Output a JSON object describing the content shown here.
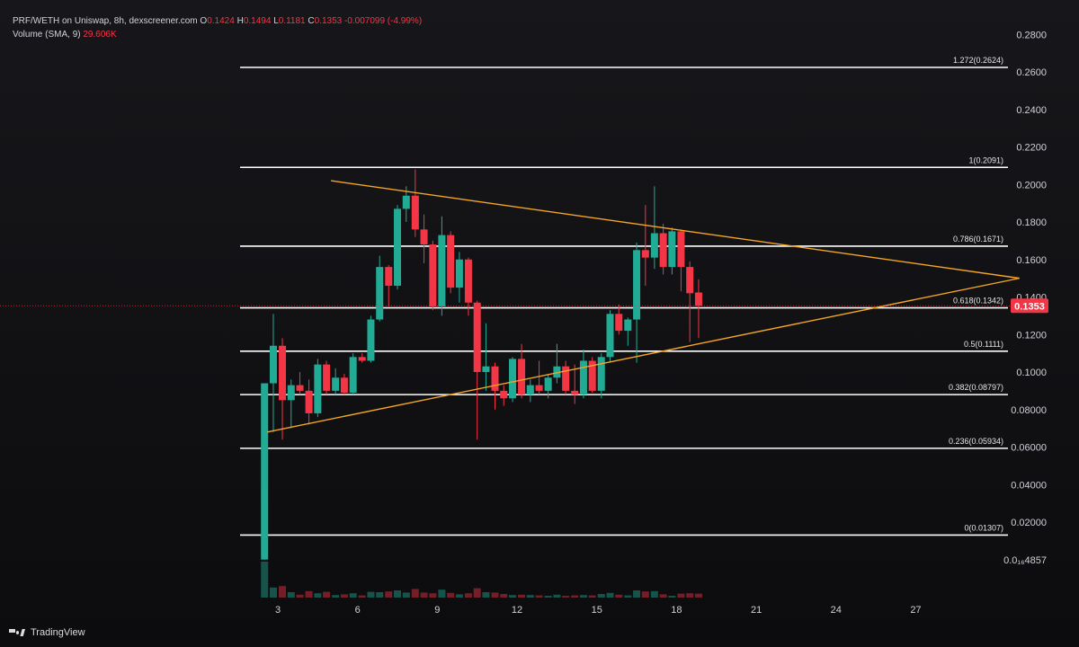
{
  "chart_data": {
    "type": "candlestick",
    "title": "PRF/WETH on Uniswap, 8h, dexscreener.com",
    "ohlc_legend": {
      "O_label": "O",
      "O": "0.1424",
      "H_label": "H",
      "H": "0.1494",
      "L_label": "L",
      "L": "0.1181",
      "C_label": "C",
      "C": "0.1353",
      "change": "-0.007099 (-4.99%)"
    },
    "volume_legend": {
      "label": "Volume (SMA, 9)",
      "value": "29.606K"
    },
    "y_axis": {
      "ylim": [
        0.0,
        0.29
      ],
      "ticks": [
        0.28,
        0.26,
        0.24,
        0.22,
        0.2,
        0.18,
        0.16,
        0.14,
        0.12,
        0.1
      ],
      "ticks_small": [
        0.08,
        0.06,
        0.04,
        0.02
      ],
      "tick_labels": [
        "0.2800",
        "0.2600",
        "0.2400",
        "0.2200",
        "0.2000",
        "0.1800",
        "0.1600",
        "0.1400",
        "0.1200",
        "0.1000"
      ],
      "tick_labels_small": [
        "0.08000",
        "0.06000",
        "0.04000",
        "0.02000"
      ],
      "bottom_label": "0.0₁₆4857"
    },
    "x_axis": {
      "tick_days": [
        3,
        6,
        9,
        12,
        15,
        18,
        21,
        24,
        27
      ],
      "tick_labels": [
        "3",
        "6",
        "9",
        "12",
        "15",
        "18",
        "21",
        "24",
        "27"
      ]
    },
    "last_price": {
      "value": 0.1353,
      "label": "0.1353"
    },
    "fib_levels": [
      {
        "ratio": 1.272,
        "price": 0.2624,
        "label": "1.272(0.2624)"
      },
      {
        "ratio": 1,
        "price": 0.2091,
        "label": "1(0.2091)"
      },
      {
        "ratio": 0.786,
        "price": 0.1671,
        "label": "0.786(0.1671)"
      },
      {
        "ratio": 0.618,
        "price": 0.1342,
        "label": "0.618(0.1342)"
      },
      {
        "ratio": 0.5,
        "price": 0.1111,
        "label": "0.5(0.1111)"
      },
      {
        "ratio": 0.382,
        "price": 0.08797,
        "label": "0.382(0.08797)"
      },
      {
        "ratio": 0.236,
        "price": 0.05934,
        "label": "0.236(0.05934)"
      },
      {
        "ratio": 0,
        "price": 0.01307,
        "label": "0(0.01307)"
      }
    ],
    "trendlines": [
      {
        "name": "upper",
        "from": {
          "day": 5.0,
          "price": 0.202
        },
        "to": {
          "day": 30.9,
          "price": 0.15
        }
      },
      {
        "name": "lower",
        "from": {
          "day": 2.6,
          "price": 0.068
        },
        "to": {
          "day": 30.9,
          "price": 0.15
        }
      }
    ],
    "candles": [
      {
        "day": 2.5,
        "o": 0.0,
        "h": 0.094,
        "l": 0.0,
        "c": 0.094,
        "v": 1.0
      },
      {
        "day": 2.83,
        "o": 0.094,
        "h": 0.131,
        "l": 0.068,
        "c": 0.114,
        "v": 0.28
      },
      {
        "day": 3.17,
        "o": 0.114,
        "h": 0.118,
        "l": 0.064,
        "c": 0.085,
        "v": 0.32
      },
      {
        "day": 3.5,
        "o": 0.085,
        "h": 0.096,
        "l": 0.07,
        "c": 0.093,
        "v": 0.15
      },
      {
        "day": 3.83,
        "o": 0.093,
        "h": 0.1,
        "l": 0.088,
        "c": 0.09,
        "v": 0.08
      },
      {
        "day": 4.17,
        "o": 0.09,
        "h": 0.096,
        "l": 0.072,
        "c": 0.078,
        "v": 0.18
      },
      {
        "day": 4.5,
        "o": 0.078,
        "h": 0.107,
        "l": 0.076,
        "c": 0.104,
        "v": 0.12
      },
      {
        "day": 4.83,
        "o": 0.104,
        "h": 0.106,
        "l": 0.088,
        "c": 0.09,
        "v": 0.16
      },
      {
        "day": 5.17,
        "o": 0.09,
        "h": 0.102,
        "l": 0.088,
        "c": 0.097,
        "v": 0.07
      },
      {
        "day": 5.5,
        "o": 0.097,
        "h": 0.099,
        "l": 0.088,
        "c": 0.089,
        "v": 0.09
      },
      {
        "day": 5.83,
        "o": 0.089,
        "h": 0.11,
        "l": 0.088,
        "c": 0.108,
        "v": 0.12
      },
      {
        "day": 6.17,
        "o": 0.108,
        "h": 0.11,
        "l": 0.105,
        "c": 0.106,
        "v": 0.06
      },
      {
        "day": 6.5,
        "o": 0.106,
        "h": 0.13,
        "l": 0.105,
        "c": 0.128,
        "v": 0.16
      },
      {
        "day": 6.83,
        "o": 0.128,
        "h": 0.162,
        "l": 0.127,
        "c": 0.156,
        "v": 0.15
      },
      {
        "day": 7.17,
        "o": 0.156,
        "h": 0.157,
        "l": 0.135,
        "c": 0.146,
        "v": 0.17
      },
      {
        "day": 7.5,
        "o": 0.146,
        "h": 0.189,
        "l": 0.144,
        "c": 0.187,
        "v": 0.2
      },
      {
        "day": 7.83,
        "o": 0.187,
        "h": 0.199,
        "l": 0.18,
        "c": 0.194,
        "v": 0.14
      },
      {
        "day": 8.17,
        "o": 0.194,
        "h": 0.208,
        "l": 0.172,
        "c": 0.176,
        "v": 0.24
      },
      {
        "day": 8.5,
        "o": 0.176,
        "h": 0.184,
        "l": 0.158,
        "c": 0.168,
        "v": 0.14
      },
      {
        "day": 8.83,
        "o": 0.168,
        "h": 0.17,
        "l": 0.133,
        "c": 0.135,
        "v": 0.12
      },
      {
        "day": 9.17,
        "o": 0.135,
        "h": 0.183,
        "l": 0.13,
        "c": 0.173,
        "v": 0.22
      },
      {
        "day": 9.5,
        "o": 0.173,
        "h": 0.175,
        "l": 0.142,
        "c": 0.145,
        "v": 0.13
      },
      {
        "day": 9.83,
        "o": 0.145,
        "h": 0.164,
        "l": 0.137,
        "c": 0.16,
        "v": 0.09
      },
      {
        "day": 10.17,
        "o": 0.16,
        "h": 0.161,
        "l": 0.13,
        "c": 0.137,
        "v": 0.12
      },
      {
        "day": 10.5,
        "o": 0.137,
        "h": 0.138,
        "l": 0.064,
        "c": 0.1,
        "v": 0.26
      },
      {
        "day": 10.83,
        "o": 0.1,
        "h": 0.126,
        "l": 0.09,
        "c": 0.103,
        "v": 0.15
      },
      {
        "day": 11.17,
        "o": 0.103,
        "h": 0.105,
        "l": 0.08,
        "c": 0.09,
        "v": 0.14
      },
      {
        "day": 11.5,
        "o": 0.09,
        "h": 0.093,
        "l": 0.082,
        "c": 0.086,
        "v": 0.1
      },
      {
        "day": 11.83,
        "o": 0.086,
        "h": 0.108,
        "l": 0.084,
        "c": 0.107,
        "v": 0.07
      },
      {
        "day": 12.17,
        "o": 0.107,
        "h": 0.115,
        "l": 0.086,
        "c": 0.088,
        "v": 0.08
      },
      {
        "day": 12.5,
        "o": 0.088,
        "h": 0.096,
        "l": 0.084,
        "c": 0.093,
        "v": 0.07
      },
      {
        "day": 12.83,
        "o": 0.093,
        "h": 0.106,
        "l": 0.088,
        "c": 0.09,
        "v": 0.06
      },
      {
        "day": 13.17,
        "o": 0.09,
        "h": 0.099,
        "l": 0.086,
        "c": 0.097,
        "v": 0.05
      },
      {
        "day": 13.5,
        "o": 0.097,
        "h": 0.115,
        "l": 0.094,
        "c": 0.103,
        "v": 0.08
      },
      {
        "day": 13.83,
        "o": 0.103,
        "h": 0.106,
        "l": 0.088,
        "c": 0.09,
        "v": 0.05
      },
      {
        "day": 14.17,
        "o": 0.09,
        "h": 0.104,
        "l": 0.083,
        "c": 0.088,
        "v": 0.06
      },
      {
        "day": 14.5,
        "o": 0.088,
        "h": 0.112,
        "l": 0.086,
        "c": 0.106,
        "v": 0.07
      },
      {
        "day": 14.83,
        "o": 0.106,
        "h": 0.108,
        "l": 0.089,
        "c": 0.09,
        "v": 0.06
      },
      {
        "day": 15.17,
        "o": 0.09,
        "h": 0.11,
        "l": 0.086,
        "c": 0.108,
        "v": 0.1
      },
      {
        "day": 15.5,
        "o": 0.108,
        "h": 0.133,
        "l": 0.105,
        "c": 0.131,
        "v": 0.13
      },
      {
        "day": 15.83,
        "o": 0.131,
        "h": 0.136,
        "l": 0.12,
        "c": 0.122,
        "v": 0.08
      },
      {
        "day": 16.17,
        "o": 0.122,
        "h": 0.129,
        "l": 0.114,
        "c": 0.128,
        "v": 0.06
      },
      {
        "day": 16.5,
        "o": 0.128,
        "h": 0.169,
        "l": 0.105,
        "c": 0.165,
        "v": 0.2
      },
      {
        "day": 16.83,
        "o": 0.165,
        "h": 0.189,
        "l": 0.146,
        "c": 0.161,
        "v": 0.17
      },
      {
        "day": 17.17,
        "o": 0.161,
        "h": 0.199,
        "l": 0.155,
        "c": 0.174,
        "v": 0.18
      },
      {
        "day": 17.5,
        "o": 0.174,
        "h": 0.179,
        "l": 0.152,
        "c": 0.156,
        "v": 0.09
      },
      {
        "day": 17.83,
        "o": 0.156,
        "h": 0.177,
        "l": 0.152,
        "c": 0.175,
        "v": 0.05
      },
      {
        "day": 18.17,
        "o": 0.175,
        "h": 0.176,
        "l": 0.143,
        "c": 0.156,
        "v": 0.11
      },
      {
        "day": 18.5,
        "o": 0.156,
        "h": 0.159,
        "l": 0.116,
        "c": 0.142,
        "v": 0.12
      },
      {
        "day": 18.83,
        "o": 0.1424,
        "h": 0.1494,
        "l": 0.1181,
        "c": 0.1353,
        "v": 0.11
      }
    ],
    "colors": {
      "up": "#22ab94",
      "down": "#f23645",
      "fib": "#ffffff",
      "trend": "#f5a623",
      "axis_text": "#cfd2d8"
    }
  },
  "brand": {
    "name": "TradingView"
  }
}
